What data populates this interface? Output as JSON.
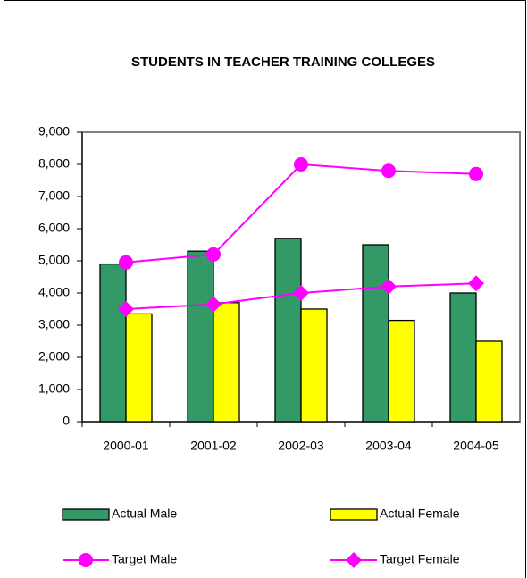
{
  "chart_data": {
    "type": "bar",
    "title": "STUDENTS IN TEACHER TRAINING COLLEGES",
    "categories": [
      "2000-01",
      "2001-02",
      "2002-03",
      "2003-04",
      "2004-05"
    ],
    "series": [
      {
        "name": "Actual Male",
        "type": "bar",
        "color": "#339966",
        "values": [
          4900,
          5300,
          5700,
          5500,
          4000
        ]
      },
      {
        "name": "Actual Female",
        "type": "bar",
        "color": "#ffff00",
        "values": [
          3350,
          3700,
          3500,
          3150,
          2500
        ]
      },
      {
        "name": "Target Male",
        "type": "line",
        "marker": "circle",
        "color": "#ff00ff",
        "values": [
          4950,
          5200,
          8000,
          7800,
          7700
        ]
      },
      {
        "name": "Target Female",
        "type": "line",
        "marker": "diamond",
        "color": "#ff00ff",
        "values": [
          3500,
          3650,
          4000,
          4200,
          4300
        ]
      }
    ],
    "ylim": [
      0,
      9000
    ],
    "yticks": [
      0,
      {
        "value": 1000,
        "label": "1,000"
      },
      {
        "value": 2000,
        "label": "2,000"
      },
      {
        "value": 3000,
        "label": "3,000"
      },
      {
        "value": 4000,
        "label": "4,000"
      },
      {
        "value": 5000,
        "label": "5,000"
      },
      {
        "value": 6000,
        "label": "6,000"
      },
      {
        "value": 7000,
        "label": "7,000"
      },
      {
        "value": 8000,
        "label": "8,000"
      },
      {
        "value": 9000,
        "label": "9,000"
      }
    ],
    "legend": "bottom"
  }
}
